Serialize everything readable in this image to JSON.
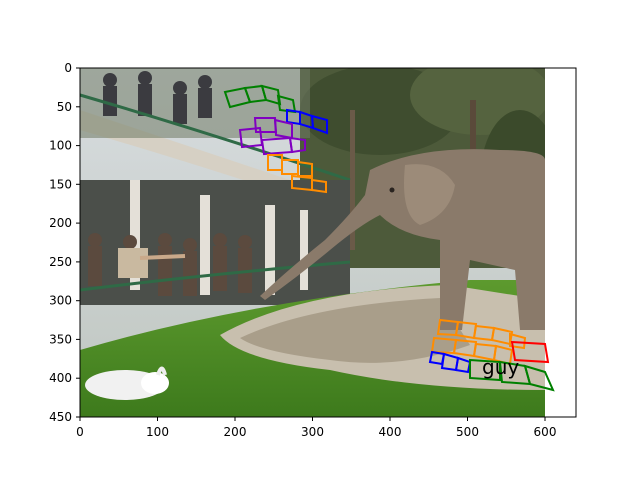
{
  "figure": {
    "x_ticks": [
      "0",
      "100",
      "200",
      "300",
      "400",
      "500",
      "600"
    ],
    "y_ticks": [
      "0",
      "50",
      "100",
      "150",
      "200",
      "250",
      "300",
      "350",
      "400",
      "450"
    ],
    "scene_description": "Zoo scene: elephant reaching trunk toward visitors at a curved railing, white peacock on grass, sunken pit with stone wall",
    "overlay_words": [
      {
        "color": "#008000",
        "letters": 5,
        "note": "green word box, top"
      },
      {
        "color": "#0000ff",
        "letters": 4,
        "note": "blue word box, top"
      },
      {
        "color": "#8000c0",
        "letters": 5,
        "note": "purple word box, top"
      },
      {
        "color": "#ff8c00",
        "letters": 5,
        "note": "orange word box, top"
      },
      {
        "color": "#ff8c00",
        "letters": 5,
        "note": "orange word box, bottom upper"
      },
      {
        "color": "#ff8c00",
        "letters": 5,
        "note": "orange word box, bottom middle"
      },
      {
        "color": "#ff0000",
        "letters": 2,
        "note": "red word box, bottom"
      },
      {
        "color": "#0000ff",
        "letters": 4,
        "note": "blue word box, bottom"
      },
      {
        "color": "#008000",
        "letters": 4,
        "note": "green word box, bottom (guy)"
      }
    ],
    "visible_text": "guy"
  }
}
